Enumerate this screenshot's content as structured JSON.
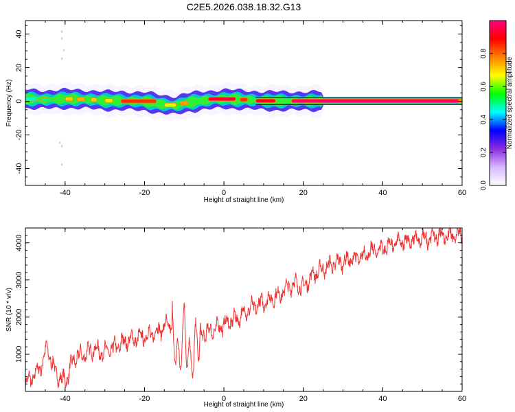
{
  "title": "C2E5.2026.038.18.32.G13",
  "chart_data": [
    {
      "type": "heatmap",
      "title": "C2E5.2026.038.18.32.G13",
      "xlabel": "Height of straight line (km)",
      "ylabel": "Frequency (Hz)",
      "xlim": [
        -50,
        60
      ],
      "ylim": [
        -50,
        48
      ],
      "xticks": [
        -40,
        -20,
        0,
        20,
        40,
        60
      ],
      "yticks": [
        -40,
        -20,
        0,
        20,
        40
      ],
      "colorbar": {
        "label": "Normalized spectral amplitude",
        "range": [
          0.0,
          1.0
        ],
        "ticks": [
          0.0,
          0.2,
          0.4,
          0.6,
          0.8
        ],
        "colors": [
          "#ffffff",
          "#d8b8ff",
          "#8a2be2",
          "#0000ff",
          "#00ffff",
          "#00ff00",
          "#ffff00",
          "#ff8000",
          "#ff0000",
          "#ff0080"
        ]
      },
      "ridge": {
        "x": [
          -50,
          -45,
          -40,
          -35,
          -30,
          -25,
          -20,
          -15,
          -12,
          -10,
          -5,
          0,
          5,
          10,
          15,
          20,
          25,
          30,
          40,
          50,
          60
        ],
        "frequency": [
          1.5,
          1.0,
          1.5,
          1.2,
          0.5,
          0.3,
          0.0,
          -2.0,
          -2.5,
          -1.0,
          0.5,
          1.5,
          1.0,
          0.3,
          0.2,
          0.2,
          0.2,
          0.2,
          0.2,
          0.2,
          0.2
        ],
        "amplitude": [
          0.45,
          0.5,
          0.7,
          0.75,
          0.65,
          0.85,
          0.85,
          0.7,
          0.6,
          0.75,
          0.8,
          0.95,
          0.85,
          0.9,
          0.9,
          0.95,
          0.95,
          0.97,
          0.98,
          0.98,
          0.98
        ]
      }
    },
    {
      "type": "line",
      "title": "",
      "xlabel": "Height of straight line (km)",
      "ylabel": "SNR (10 * v/v)",
      "xlim": [
        -50,
        60
      ],
      "ylim": [
        0,
        4400
      ],
      "xticks": [
        -40,
        -20,
        0,
        20,
        40,
        60
      ],
      "yticks": [
        1000,
        2000,
        3000,
        4000
      ],
      "series": [
        {
          "name": "SNR",
          "color": "#ee3333",
          "x": [
            -50,
            -48,
            -46,
            -44.5,
            -43,
            -41,
            -39.5,
            -38,
            -36.5,
            -35,
            -33,
            -31,
            -29,
            -27,
            -25,
            -23,
            -21,
            -19,
            -17,
            -15,
            -13,
            -11.5,
            -10,
            -8.5,
            -7,
            -6,
            -4,
            -2,
            0,
            2,
            4,
            6,
            8,
            10,
            12,
            14,
            16,
            18,
            20,
            22,
            24,
            26,
            28,
            30,
            32,
            34,
            36,
            38,
            40,
            42,
            44,
            46,
            48,
            50,
            52,
            54,
            56,
            58,
            60
          ],
          "y": [
            200,
            400,
            700,
            1200,
            650,
            300,
            350,
            850,
            950,
            1000,
            1150,
            1050,
            1100,
            1200,
            1350,
            1400,
            1450,
            1500,
            1600,
            1750,
            1800,
            700,
            1800,
            700,
            1300,
            1500,
            1600,
            1700,
            1800,
            1900,
            2000,
            2200,
            2300,
            2400,
            2500,
            2600,
            2800,
            2900,
            2800,
            3100,
            3250,
            3350,
            3450,
            3500,
            3550,
            3600,
            3700,
            3800,
            3850,
            3950,
            4000,
            4050,
            4080,
            4100,
            4150,
            4200,
            4200,
            4180,
            4200
          ],
          "noise_amplitude": 150
        }
      ]
    }
  ]
}
